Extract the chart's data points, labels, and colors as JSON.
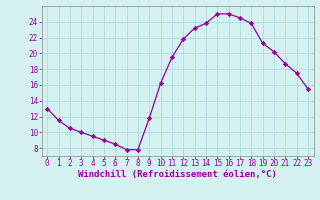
{
  "x": [
    0,
    1,
    2,
    3,
    4,
    5,
    6,
    7,
    8,
    9,
    10,
    11,
    12,
    13,
    14,
    15,
    16,
    17,
    18,
    19,
    20,
    21,
    22,
    23
  ],
  "y": [
    13,
    11.5,
    10.5,
    10,
    9.5,
    9,
    8.5,
    7.8,
    7.8,
    11.8,
    16.2,
    19.5,
    21.8,
    23.2,
    23.8,
    25.0,
    25.0,
    24.5,
    23.8,
    21.3,
    20.2,
    18.7,
    17.5,
    15.5
  ],
  "line_color": "#990099",
  "marker": "D",
  "marker_size": 2.2,
  "background_color": "#d4f0f0",
  "grid_color": "#aadddd",
  "xlabel": "Windchill (Refroidissement éolien,°C)",
  "xlabel_color": "#990099",
  "title": "",
  "xlim": [
    -0.5,
    23.5
  ],
  "ylim": [
    7,
    26
  ],
  "yticks": [
    8,
    10,
    12,
    14,
    16,
    18,
    20,
    22,
    24
  ],
  "xticks": [
    0,
    1,
    2,
    3,
    4,
    5,
    6,
    7,
    8,
    9,
    10,
    11,
    12,
    13,
    14,
    15,
    16,
    17,
    18,
    19,
    20,
    21,
    22,
    23
  ],
  "tick_label_color": "#990099",
  "tick_label_fontsize": 5.5,
  "xlabel_fontsize": 6.5
}
